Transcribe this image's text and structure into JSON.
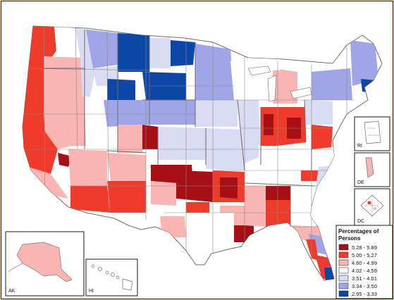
{
  "insets": {
    "ak": {
      "label": "AK"
    },
    "hi": {
      "label": "HI"
    },
    "ri": {
      "label": "RI"
    },
    "de": {
      "label": "DE"
    },
    "dc": {
      "label": "DC"
    }
  },
  "legend": {
    "title_line1": "Percentages of",
    "title_line2": "Persons",
    "classes": [
      {
        "label": "5.28 - 5.89",
        "color": "#a50f15"
      },
      {
        "label": "5.00 - 5.27",
        "color": "#ef3b2c"
      },
      {
        "label": "4.60 - 4.99",
        "color": "#f9b4b4"
      },
      {
        "label": "4.02 - 4.59",
        "color": "#ffffff"
      },
      {
        "label": "3.51 - 4.01",
        "color": "#d9dcf2"
      },
      {
        "label": "3.34 - 3.50",
        "color": "#9fa5e6"
      },
      {
        "label": "2.95 - 3.33",
        "color": "#0c47a8"
      }
    ]
  },
  "colors": {
    "background": "#f3e6b8",
    "map_bg": "#ffffff",
    "boundary": "#8a8a8a"
  }
}
